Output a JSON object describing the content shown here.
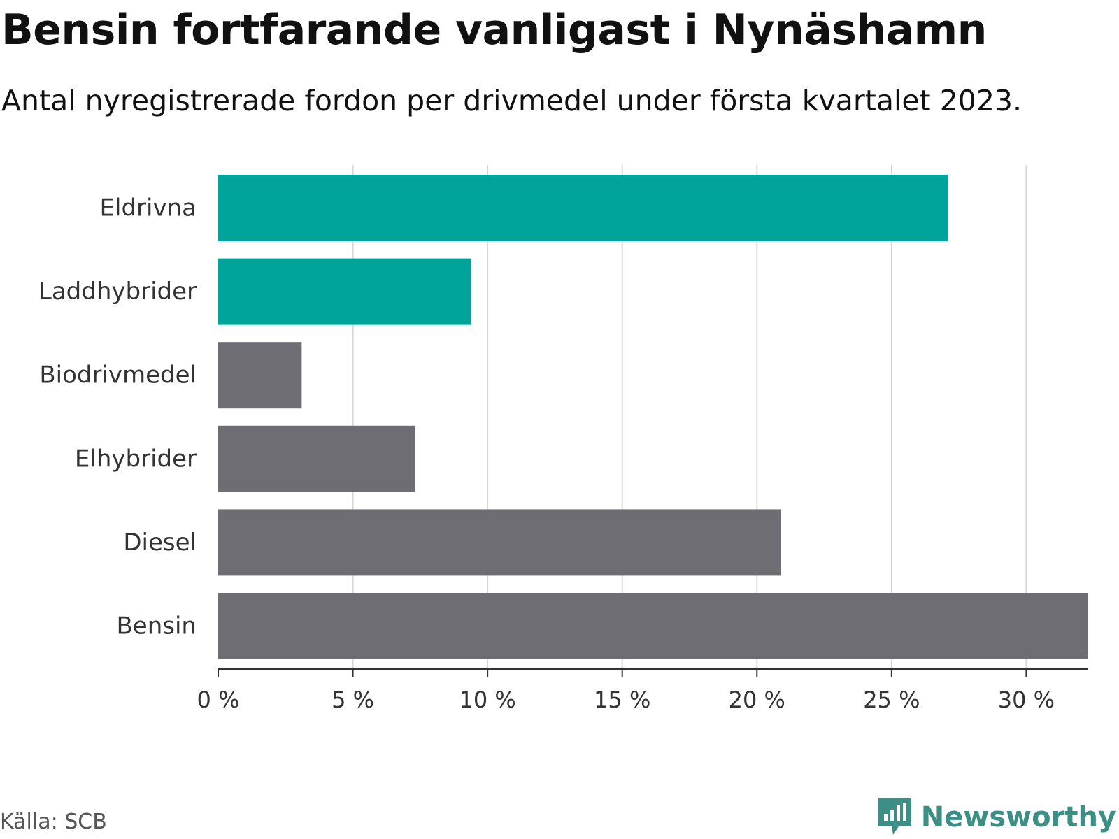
{
  "chart_data": {
    "type": "bar",
    "orientation": "horizontal",
    "title": "Bensin fortfarande vanligast i Nynäshamn",
    "subtitle": "Antal nyregistrerade fordon per drivmedel under första kvartalet 2023.",
    "categories": [
      "Eldrivna",
      "Laddhybrider",
      "Biodrivmedel",
      "Elhybrider",
      "Diesel",
      "Bensin"
    ],
    "values": [
      27.1,
      9.4,
      3.1,
      7.3,
      20.9,
      32.3
    ],
    "unit": "%",
    "colors": [
      "#00a49a",
      "#00a49a",
      "#6d6d73",
      "#6d6d73",
      "#6d6d73",
      "#6d6d73"
    ],
    "xlim": [
      0,
      32.3
    ],
    "xticks": [
      0,
      5,
      10,
      15,
      20,
      25,
      30
    ],
    "xtick_labels": [
      "0 %",
      "5 %",
      "10 %",
      "15 %",
      "20 %",
      "25 %",
      "30 %"
    ],
    "grid": true,
    "xlabel": "",
    "ylabel": ""
  },
  "source": "Källa: SCB",
  "brand": {
    "name": "Newsworthy",
    "color": "#3d8f86",
    "icon": "newsworthy-logo-icon"
  }
}
